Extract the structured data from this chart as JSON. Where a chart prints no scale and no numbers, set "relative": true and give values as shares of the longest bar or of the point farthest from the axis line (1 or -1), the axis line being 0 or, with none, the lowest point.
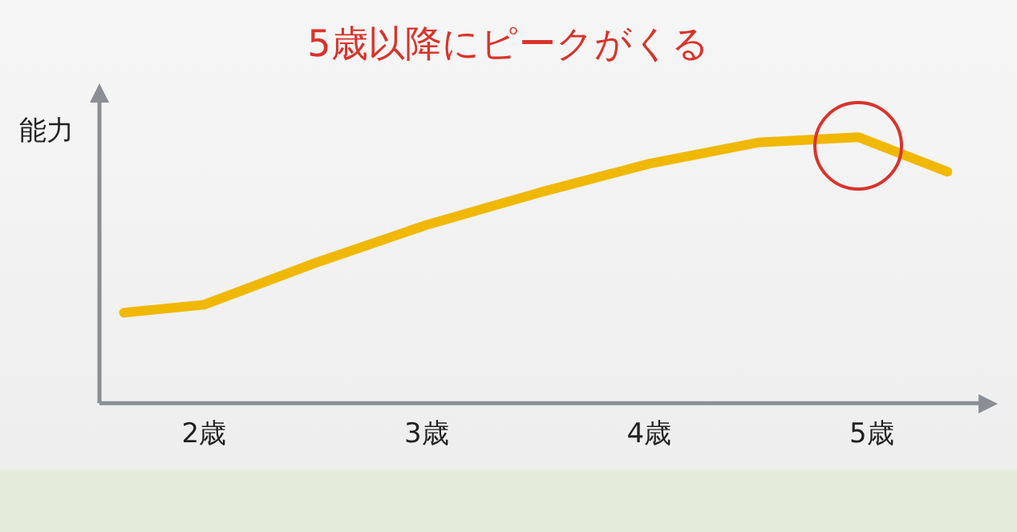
{
  "chart_data": {
    "type": "line",
    "title": "5歳以降にピークがくる",
    "ylabel": "能力",
    "relative": true,
    "x": [
      1.64,
      2,
      2.51,
      3,
      3.5,
      4,
      4.49,
      4.94,
      5.34
    ],
    "values": [
      0.34,
      0.37,
      0.53,
      0.67,
      0.79,
      0.9,
      0.98,
      1,
      0.87
    ],
    "color": "#f0b800",
    "xlim": [
      1.53,
      5.48
    ],
    "xticks": [
      {
        "value": 2,
        "label": "2歳"
      },
      {
        "value": 3,
        "label": "3歳"
      },
      {
        "value": 4,
        "label": "4歳"
      },
      {
        "value": 5,
        "label": "5歳"
      }
    ],
    "grid": false,
    "legend": false,
    "marker": "none"
  }
}
